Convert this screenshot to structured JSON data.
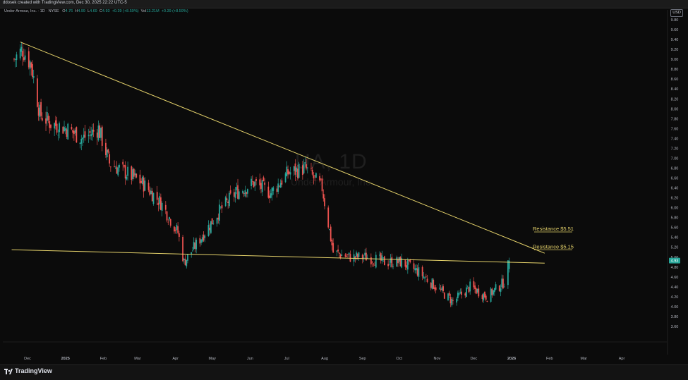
{
  "header": {
    "caption": "ddosek created with TradingView.com, Dec 30, 2025 22:22 UTC-5"
  },
  "legend": {
    "symbol": "Under Armour, Inc. · 1D · NYSE",
    "open_label": "O",
    "open": "4.76",
    "high_label": "H",
    "high": "4.99",
    "low_label": "L",
    "low": "4.69",
    "close_label": "C",
    "close": "4.93",
    "change": "+0.39 (+8.59%)",
    "volume_label": "Vol",
    "volume": "13.21M",
    "volume_change": "+0.39 (+8.59%)"
  },
  "currency_button": "USD",
  "watermark": {
    "ticker": "UA, 1D",
    "name": "Under Armour, Inc."
  },
  "footer": {
    "brand": "TradingView"
  },
  "colors": {
    "up": "#26a69a",
    "down": "#ef5350",
    "trendline": "#e6d36b",
    "price_tag": "#26a69a",
    "background": "#0b0b0b"
  },
  "chart_data": {
    "type": "candlestick",
    "title": "Under Armour, Inc. · 1D · NYSE",
    "ylim": [
      3.5,
      9.9
    ],
    "y_ticks": [
      "9.80",
      "9.60",
      "9.40",
      "9.20",
      "9.00",
      "8.80",
      "8.60",
      "8.40",
      "8.20",
      "8.00",
      "7.80",
      "7.60",
      "7.40",
      "7.20",
      "7.00",
      "6.80",
      "6.60",
      "6.40",
      "6.20",
      "6.00",
      "5.80",
      "5.60",
      "5.40",
      "5.20",
      "5.00",
      "4.80",
      "4.60",
      "4.40",
      "4.20",
      "4.00",
      "3.80",
      "3.60"
    ],
    "x_ticks": [
      "Dec",
      "2025",
      "Feb",
      "Mar",
      "Apr",
      "May",
      "Jun",
      "Jul",
      "Aug",
      "Sep",
      "Oct",
      "Nov",
      "Dec",
      "2026",
      "Feb",
      "Mar",
      "Apr"
    ],
    "last_price": "4.93",
    "series": [
      {
        "date": "2024-11-20",
        "close": 9.0
      },
      {
        "date": "2024-11-27",
        "close": 9.2
      },
      {
        "date": "2024-12-04",
        "close": 8.9
      },
      {
        "date": "2024-12-11",
        "close": 7.9
      },
      {
        "date": "2024-12-20",
        "close": 7.7
      },
      {
        "date": "2025-01-02",
        "close": 7.6
      },
      {
        "date": "2025-01-15",
        "close": 7.4
      },
      {
        "date": "2025-01-28",
        "close": 7.6
      },
      {
        "date": "2025-02-06",
        "close": 6.9
      },
      {
        "date": "2025-02-20",
        "close": 6.7
      },
      {
        "date": "2025-03-05",
        "close": 6.5
      },
      {
        "date": "2025-03-20",
        "close": 6.1
      },
      {
        "date": "2025-04-03",
        "close": 5.5
      },
      {
        "date": "2025-04-08",
        "close": 4.9
      },
      {
        "date": "2025-04-22",
        "close": 5.4
      },
      {
        "date": "2025-05-06",
        "close": 5.9
      },
      {
        "date": "2025-05-20",
        "close": 6.3
      },
      {
        "date": "2025-06-04",
        "close": 6.5
      },
      {
        "date": "2025-06-18",
        "close": 6.3
      },
      {
        "date": "2025-07-02",
        "close": 6.7
      },
      {
        "date": "2025-07-16",
        "close": 6.8
      },
      {
        "date": "2025-07-30",
        "close": 6.4
      },
      {
        "date": "2025-08-08",
        "close": 5.1
      },
      {
        "date": "2025-08-22",
        "close": 5.0
      },
      {
        "date": "2025-09-05",
        "close": 5.0
      },
      {
        "date": "2025-09-19",
        "close": 4.9
      },
      {
        "date": "2025-10-03",
        "close": 4.9
      },
      {
        "date": "2025-10-17",
        "close": 4.7
      },
      {
        "date": "2025-10-31",
        "close": 4.4
      },
      {
        "date": "2025-11-14",
        "close": 4.1
      },
      {
        "date": "2025-11-28",
        "close": 4.4
      },
      {
        "date": "2025-12-12",
        "close": 4.2
      },
      {
        "date": "2025-12-26",
        "close": 4.5
      },
      {
        "date": "2025-12-30",
        "close": 4.93
      }
    ],
    "trendlines": [
      {
        "name": "descending-trendline",
        "from": {
          "date": "2024-11-25",
          "price": 9.35
        },
        "to": {
          "date": "2026-01-28",
          "price": 5.08
        }
      },
      {
        "name": "horizontal-trendline",
        "from": {
          "date": "2024-11-18",
          "price": 5.15
        },
        "to": {
          "date": "2026-01-28",
          "price": 4.88
        }
      }
    ],
    "annotations": [
      {
        "text": "Resistance $5.51",
        "price": 5.51
      },
      {
        "text": "Resistance $5.15",
        "price": 5.15
      }
    ]
  }
}
